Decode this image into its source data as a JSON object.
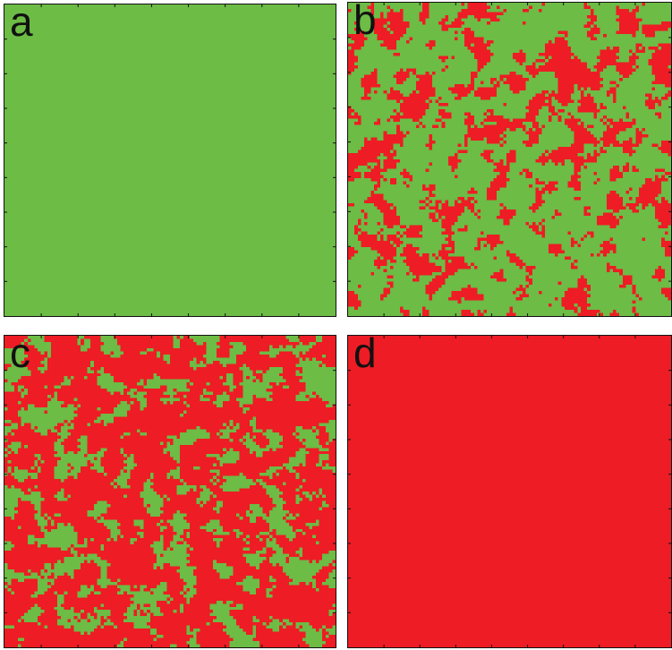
{
  "colors": {
    "green": "#6cbc45",
    "red": "#ee1c24",
    "frame": "#111111"
  },
  "panels": [
    {
      "id": "a",
      "label": "a",
      "red_fraction": 0.0
    },
    {
      "id": "b",
      "label": "b",
      "red_fraction": 0.3
    },
    {
      "id": "c",
      "label": "c",
      "red_fraction": 0.7
    },
    {
      "id": "d",
      "label": "d",
      "red_fraction": 1.0
    }
  ]
}
